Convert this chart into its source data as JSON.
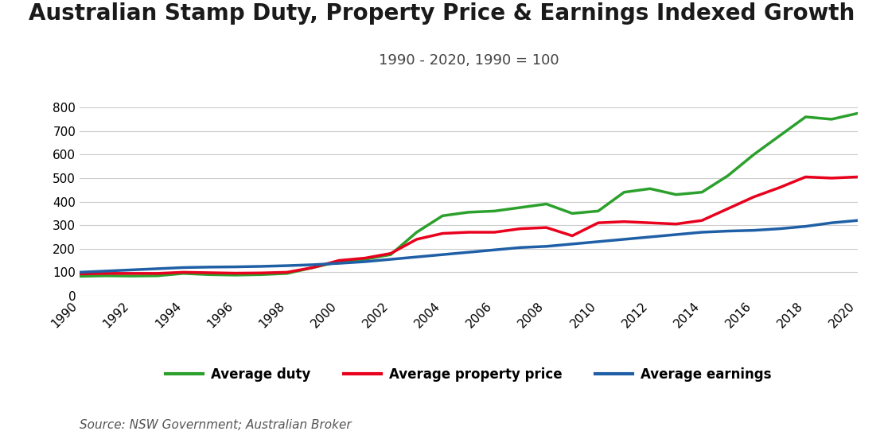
{
  "title": "Australian Stamp Duty, Property Price & Earnings Indexed Growth",
  "subtitle": "1990 - 2020, 1990 = 100",
  "source": "Source: NSW Government; Australian Broker",
  "years": [
    1990,
    1991,
    1992,
    1993,
    1994,
    1995,
    1996,
    1997,
    1998,
    1999,
    2000,
    2001,
    2002,
    2003,
    2004,
    2005,
    2006,
    2007,
    2008,
    2009,
    2010,
    2011,
    2012,
    2013,
    2014,
    2015,
    2016,
    2017,
    2018,
    2019,
    2020
  ],
  "avg_duty": [
    83,
    85,
    84,
    85,
    95,
    90,
    88,
    90,
    95,
    120,
    145,
    155,
    175,
    270,
    340,
    355,
    360,
    375,
    390,
    350,
    360,
    440,
    455,
    430,
    440,
    510,
    600,
    680,
    760,
    750,
    775
  ],
  "avg_property": [
    93,
    95,
    95,
    95,
    100,
    98,
    96,
    97,
    100,
    120,
    150,
    160,
    180,
    240,
    265,
    270,
    270,
    285,
    290,
    255,
    310,
    315,
    310,
    305,
    320,
    370,
    420,
    460,
    505,
    500,
    505
  ],
  "avg_earnings": [
    100,
    105,
    110,
    115,
    120,
    122,
    123,
    125,
    128,
    132,
    138,
    145,
    155,
    165,
    175,
    185,
    195,
    205,
    210,
    220,
    230,
    240,
    250,
    260,
    270,
    275,
    278,
    285,
    295,
    310,
    320
  ],
  "duty_color": "#2ca02c",
  "property_color": "#e8001c",
  "earnings_color": "#1f5fa6",
  "ylim": [
    0,
    850
  ],
  "yticks": [
    0,
    100,
    200,
    300,
    400,
    500,
    600,
    700,
    800
  ],
  "linewidth": 2.5,
  "legend_labels": [
    "Average duty",
    "Average property price",
    "Average earnings"
  ],
  "background_color": "#ffffff",
  "grid_color": "#cccccc",
  "title_fontsize": 20,
  "subtitle_fontsize": 13,
  "tick_fontsize": 11,
  "legend_fontsize": 12,
  "source_fontsize": 11
}
